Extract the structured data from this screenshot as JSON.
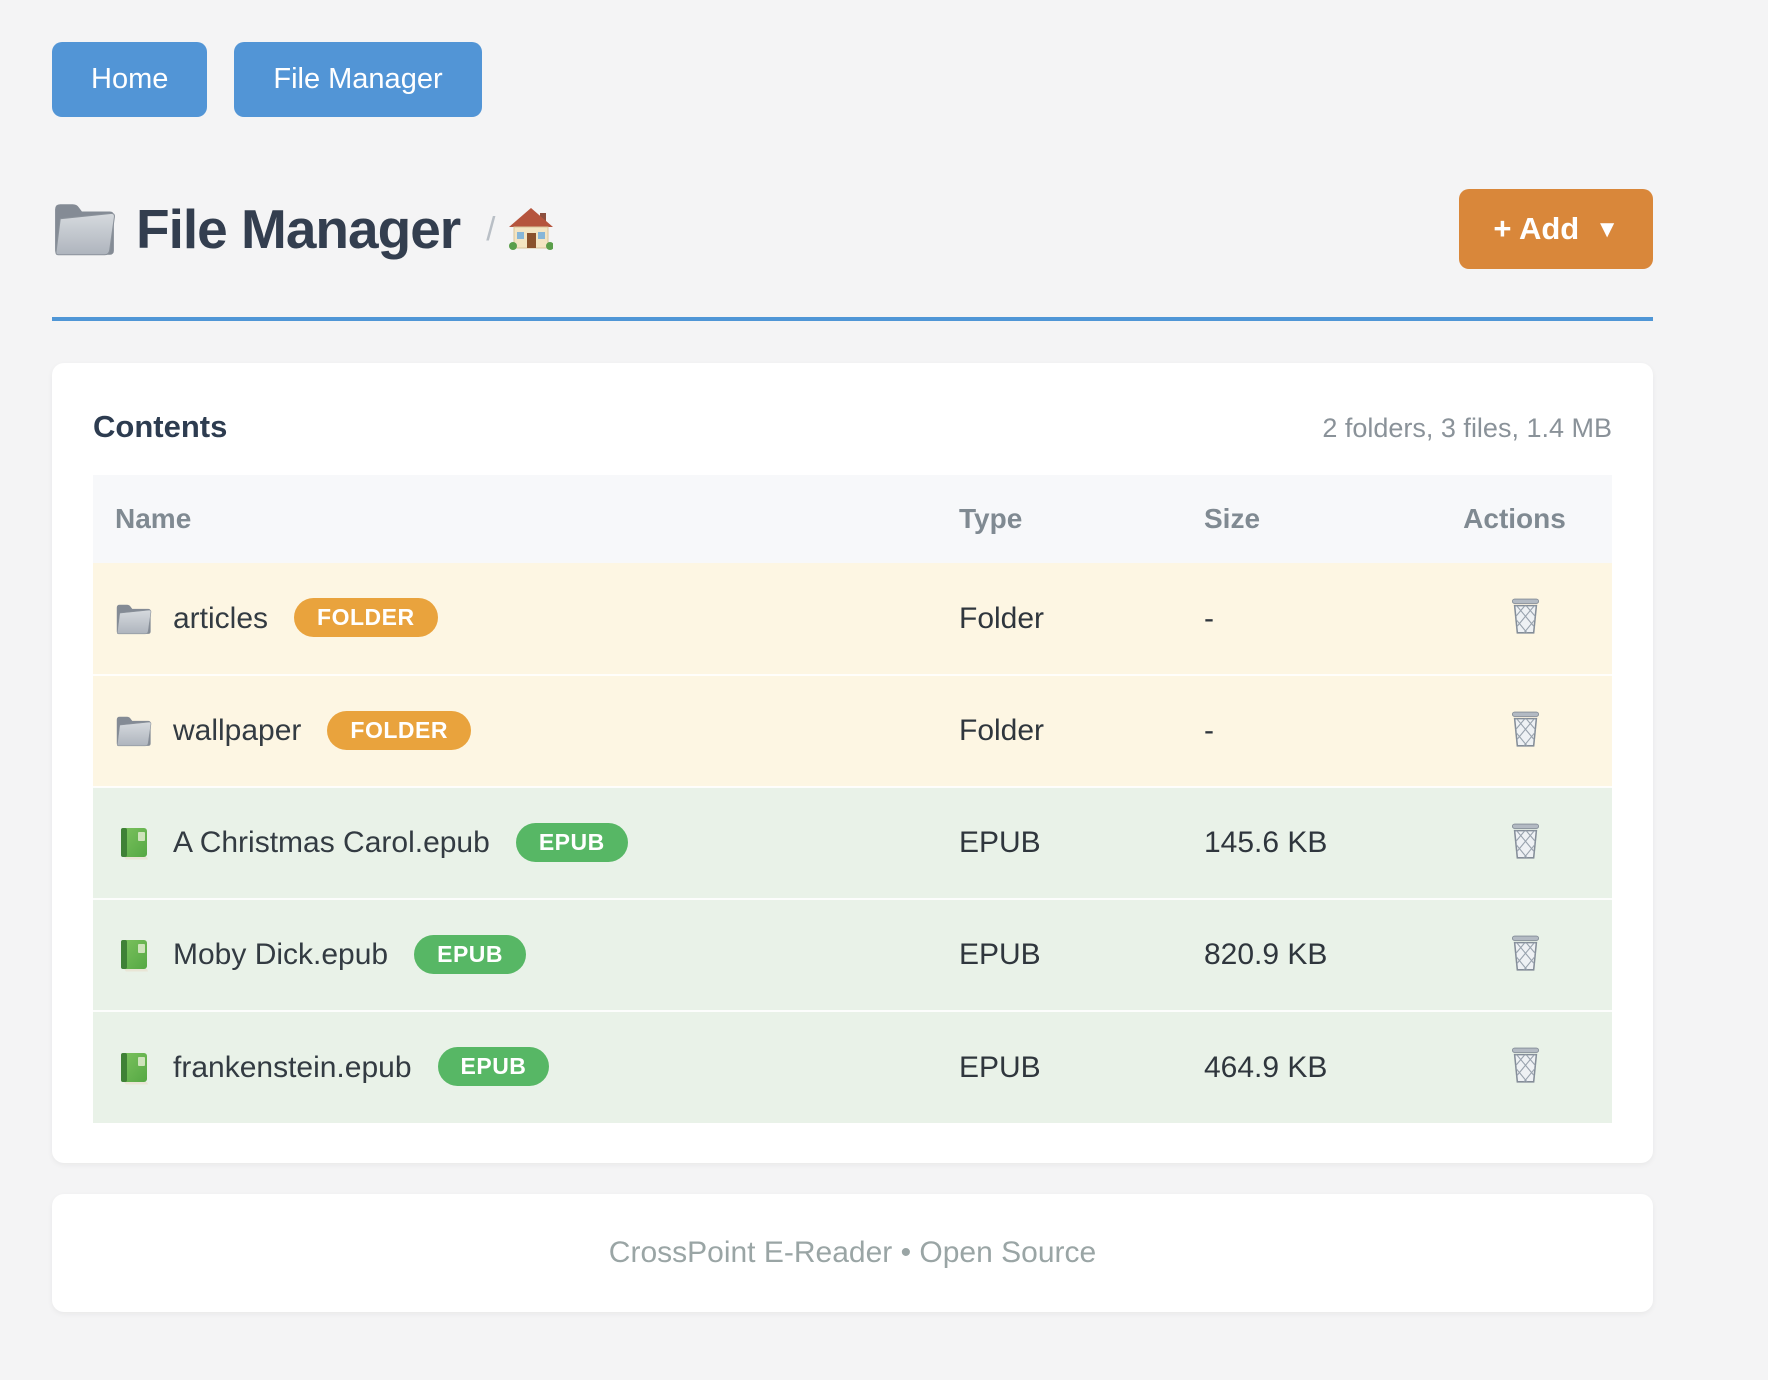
{
  "nav": {
    "home_label": "Home",
    "file_manager_label": "File Manager"
  },
  "header": {
    "title": "File Manager",
    "title_icon": "folder-icon",
    "breadcrumb_separator": "/",
    "breadcrumb_icon": "house-icon",
    "add_button_label": "+ Add",
    "add_caret": "▼"
  },
  "contents": {
    "title": "Contents",
    "summary": "2 folders, 3 files, 1.4 MB",
    "columns": [
      "Name",
      "Type",
      "Size",
      "Actions"
    ],
    "row_action_icon": "trash-icon",
    "rows": [
      {
        "name": "articles",
        "kind": "folder",
        "icon": "folder-icon",
        "badge": "FOLDER",
        "type": "Folder",
        "size": "-"
      },
      {
        "name": "wallpaper",
        "kind": "folder",
        "icon": "folder-icon",
        "badge": "FOLDER",
        "type": "Folder",
        "size": "-"
      },
      {
        "name": "A Christmas Carol.epub",
        "kind": "epub",
        "icon": "green-book-icon",
        "badge": "EPUB",
        "type": "EPUB",
        "size": "145.6 KB"
      },
      {
        "name": "Moby Dick.epub",
        "kind": "epub",
        "icon": "green-book-icon",
        "badge": "EPUB",
        "type": "EPUB",
        "size": "820.9 KB"
      },
      {
        "name": "frankenstein.epub",
        "kind": "epub",
        "icon": "green-book-icon",
        "badge": "EPUB",
        "type": "EPUB",
        "size": "464.9 KB"
      }
    ]
  },
  "footer": {
    "text": "CrossPoint E-Reader • Open Source"
  },
  "colors": {
    "page_background": "#f4f4f5",
    "nav_button_blue": "#5295d6",
    "divider_blue": "#4f96d6",
    "add_button_orange": "#d9873a",
    "folder_badge_orange": "#e9a33d",
    "epub_badge_green": "#57b765",
    "folder_row_background": "#fdf6e3",
    "epub_row_background": "#e9f2e8",
    "title_text": "#333e4f",
    "muted_text": "#8a9299"
  }
}
